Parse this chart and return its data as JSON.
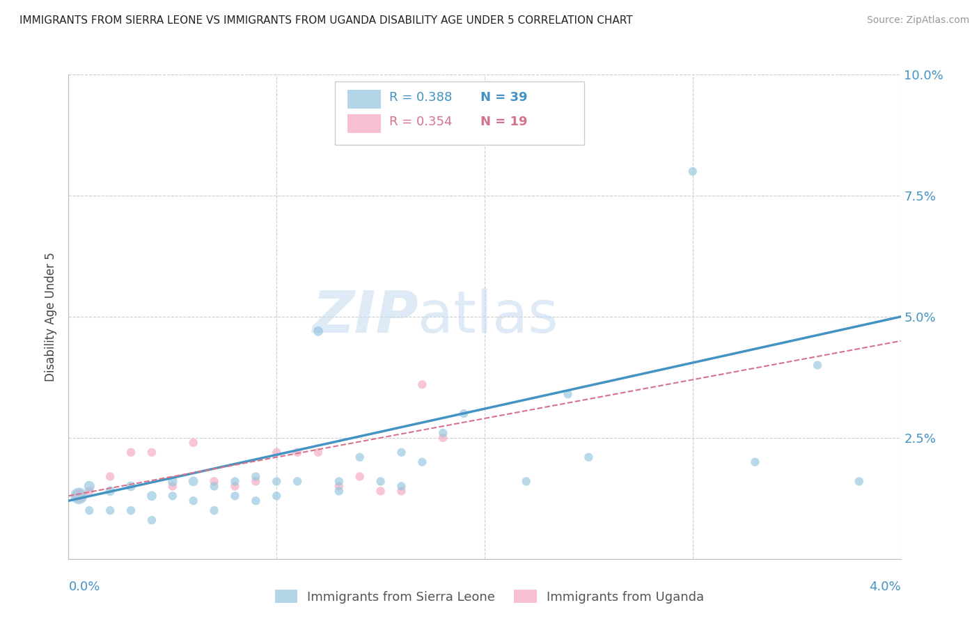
{
  "title": "IMMIGRANTS FROM SIERRA LEONE VS IMMIGRANTS FROM UGANDA DISABILITY AGE UNDER 5 CORRELATION CHART",
  "source": "Source: ZipAtlas.com",
  "ylabel": "Disability Age Under 5",
  "legend_label1": "Immigrants from Sierra Leone",
  "legend_label2": "Immigrants from Uganda",
  "watermark_zip": "ZIP",
  "watermark_atlas": "atlas",
  "blue_color": "#92c5de",
  "blue_dark": "#4393c3",
  "pink_color": "#f4a6c0",
  "pink_dark": "#d6728a",
  "background": "#ffffff",
  "grid_color": "#cccccc",
  "axis_color": "#bbbbbb",
  "right_tick_color": "#4393c3",
  "title_color": "#222222",
  "source_color": "#999999",
  "legend_border_color": "#cccccc",
  "sierra_leone_x": [
    0.0005,
    0.001,
    0.001,
    0.002,
    0.002,
    0.003,
    0.003,
    0.004,
    0.004,
    0.005,
    0.005,
    0.006,
    0.006,
    0.007,
    0.007,
    0.008,
    0.008,
    0.009,
    0.009,
    0.01,
    0.01,
    0.011,
    0.012,
    0.013,
    0.013,
    0.014,
    0.015,
    0.016,
    0.016,
    0.017,
    0.018,
    0.019,
    0.022,
    0.024,
    0.025,
    0.03,
    0.033,
    0.036,
    0.038
  ],
  "sierra_leone_y": [
    0.013,
    0.015,
    0.01,
    0.014,
    0.01,
    0.015,
    0.01,
    0.013,
    0.008,
    0.016,
    0.013,
    0.016,
    0.012,
    0.015,
    0.01,
    0.016,
    0.013,
    0.017,
    0.012,
    0.016,
    0.013,
    0.016,
    0.047,
    0.016,
    0.014,
    0.021,
    0.016,
    0.022,
    0.015,
    0.02,
    0.026,
    0.03,
    0.016,
    0.034,
    0.021,
    0.08,
    0.02,
    0.04,
    0.016
  ],
  "sierra_leone_sizes": [
    300,
    120,
    80,
    100,
    80,
    100,
    80,
    100,
    80,
    100,
    80,
    100,
    80,
    80,
    80,
    80,
    80,
    80,
    80,
    80,
    80,
    80,
    100,
    80,
    80,
    80,
    80,
    80,
    80,
    80,
    80,
    80,
    80,
    80,
    80,
    80,
    80,
    80,
    80
  ],
  "uganda_x": [
    0.0005,
    0.001,
    0.002,
    0.003,
    0.004,
    0.005,
    0.006,
    0.007,
    0.008,
    0.009,
    0.01,
    0.011,
    0.012,
    0.013,
    0.014,
    0.015,
    0.016,
    0.017,
    0.018
  ],
  "uganda_y": [
    0.013,
    0.014,
    0.017,
    0.022,
    0.022,
    0.015,
    0.024,
    0.016,
    0.015,
    0.016,
    0.022,
    0.022,
    0.022,
    0.015,
    0.017,
    0.014,
    0.014,
    0.036,
    0.025
  ],
  "uganda_sizes": [
    200,
    80,
    80,
    80,
    80,
    80,
    80,
    80,
    80,
    80,
    80,
    80,
    80,
    80,
    80,
    80,
    80,
    80,
    80
  ],
  "xlim": [
    0.0,
    0.04
  ],
  "ylim": [
    0.0,
    0.1
  ],
  "sl_trend_x": [
    0.0,
    0.04
  ],
  "sl_trend_y": [
    0.012,
    0.05
  ],
  "ug_trend_x": [
    0.0,
    0.04
  ],
  "ug_trend_y": [
    0.013,
    0.045
  ]
}
